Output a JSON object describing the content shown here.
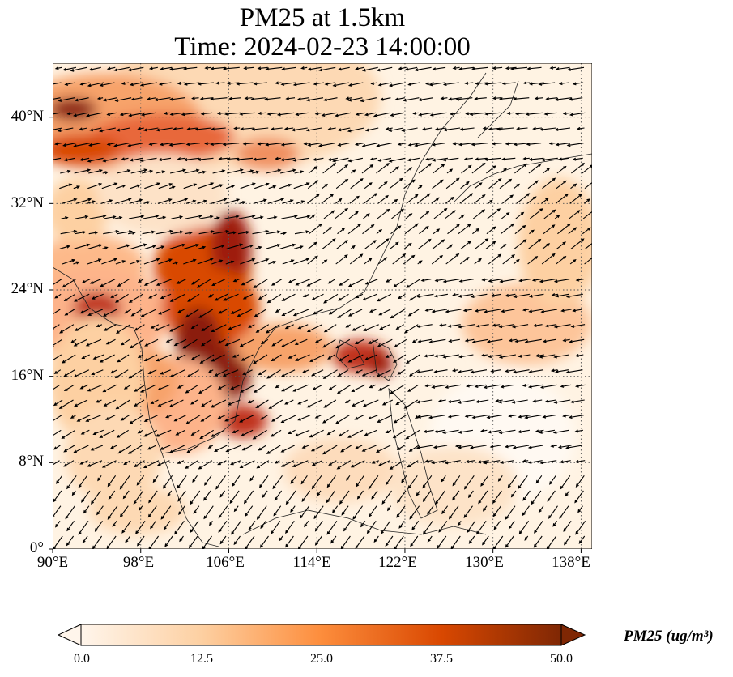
{
  "title": "PM25 at 1.5km",
  "subtitle": "Time: 2024-02-23 14:00:00",
  "map": {
    "lon_range": [
      90,
      139
    ],
    "lat_range": [
      0,
      45
    ],
    "y_ticks": [
      {
        "value": 0,
        "label": "0°"
      },
      {
        "value": 8,
        "label": "8°N"
      },
      {
        "value": 16,
        "label": "16°N"
      },
      {
        "value": 24,
        "label": "24°N"
      },
      {
        "value": 32,
        "label": "32°N"
      },
      {
        "value": 40,
        "label": "40°N"
      }
    ],
    "x_ticks": [
      {
        "value": 90,
        "label": "90°E"
      },
      {
        "value": 98,
        "label": "98°E"
      },
      {
        "value": 106,
        "label": "106°E"
      },
      {
        "value": 114,
        "label": "114°E"
      },
      {
        "value": 122,
        "label": "122°E"
      },
      {
        "value": 130,
        "label": "130°E"
      },
      {
        "value": 138,
        "label": "138°E"
      }
    ],
    "grid": "dotted",
    "wind_vectors": "shown"
  },
  "colorbar": {
    "label": "PM25 (ug/m³)",
    "range": [
      0,
      50
    ],
    "ticks": [
      "0.0",
      "12.5",
      "25.0",
      "37.5",
      "50.0"
    ],
    "colormap": [
      "#fff5eb",
      "#fdd0a2",
      "#fd8d3c",
      "#d94801",
      "#7f2704"
    ],
    "extend": "both"
  }
}
